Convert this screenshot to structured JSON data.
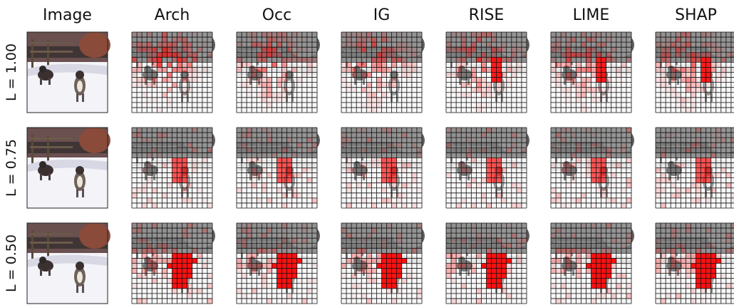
{
  "columns": [
    "Image",
    "Arch",
    "Occ",
    "IG",
    "RISE",
    "LIME",
    "SHAP"
  ],
  "rows": [
    "L = 1.00",
    "L = 0.75",
    "L = 0.50"
  ]
}
